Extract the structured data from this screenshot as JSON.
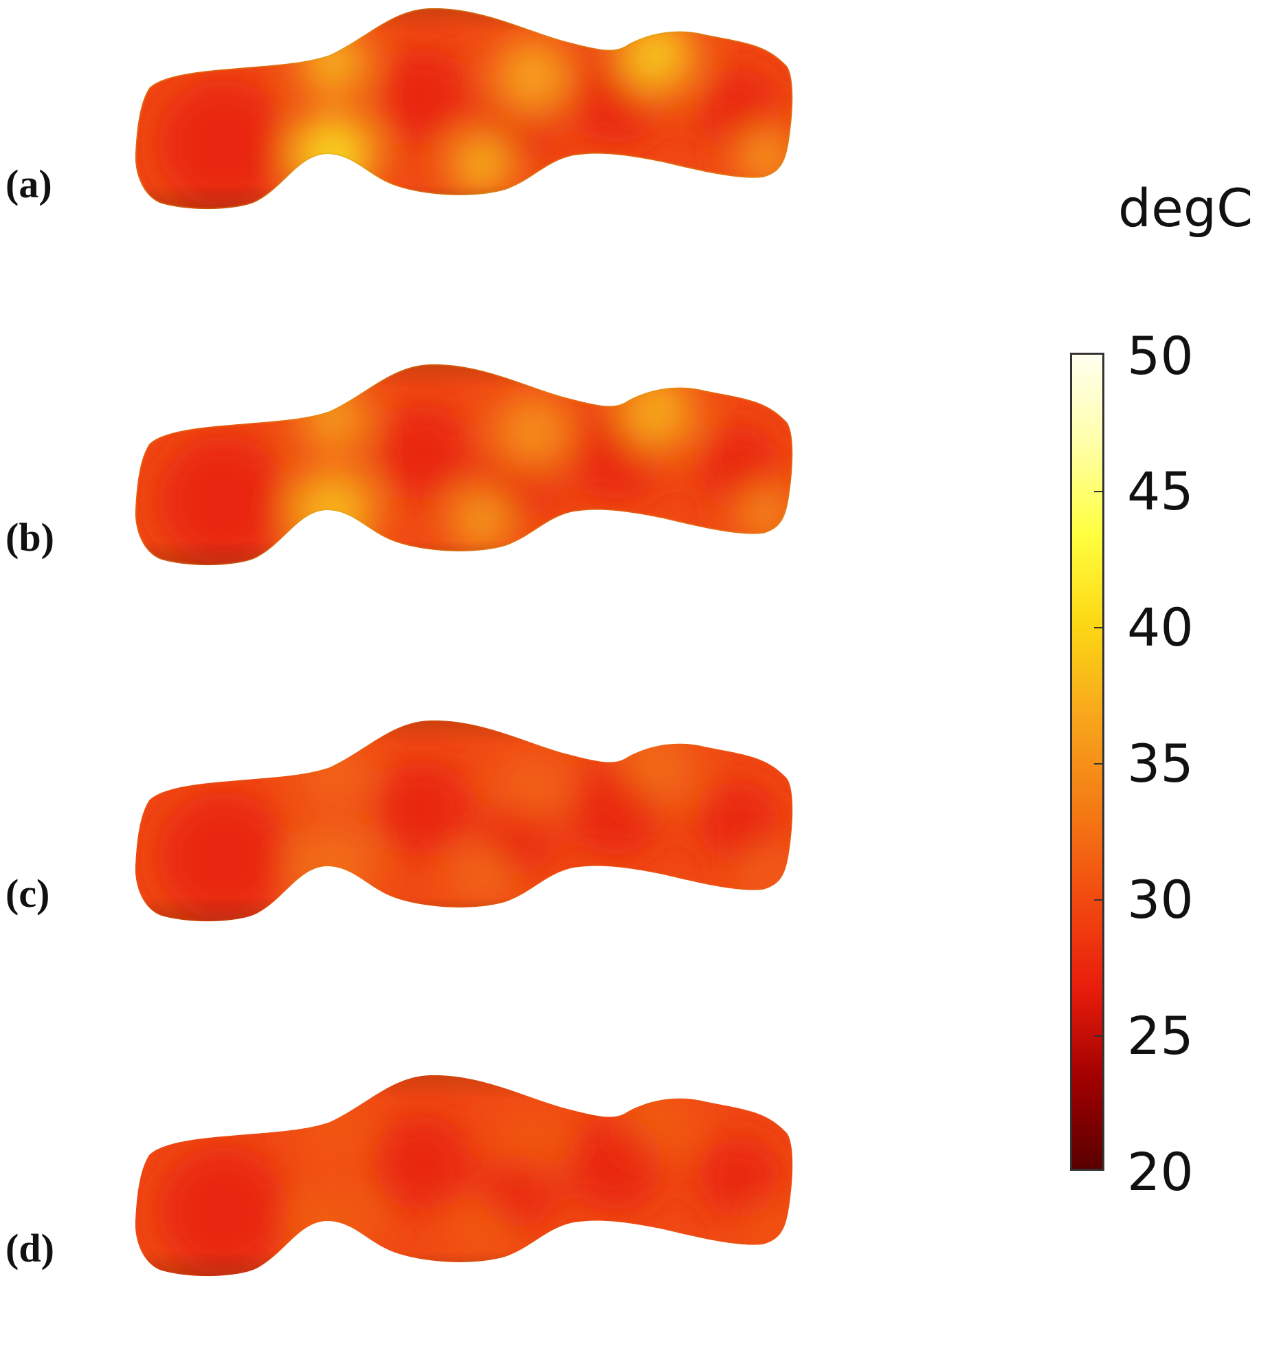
{
  "panels": [
    {
      "label": "(a)",
      "heat": 0.95
    },
    {
      "label": "(b)",
      "heat": 0.75
    },
    {
      "label": "(c)",
      "heat": 0.25
    },
    {
      "label": "(d)",
      "heat": 0.12
    }
  ],
  "colorbar": {
    "unit": "degC",
    "ticks": [
      "50",
      "45",
      "40",
      "35",
      "30",
      "25",
      "20"
    ],
    "colors": [
      "#5a0000",
      "#a00000",
      "#e81c0c",
      "#f24a10",
      "#f47a14",
      "#f8a81c",
      "#fcd814",
      "#ffff40",
      "#ffffa8",
      "#fffff0"
    ]
  }
}
